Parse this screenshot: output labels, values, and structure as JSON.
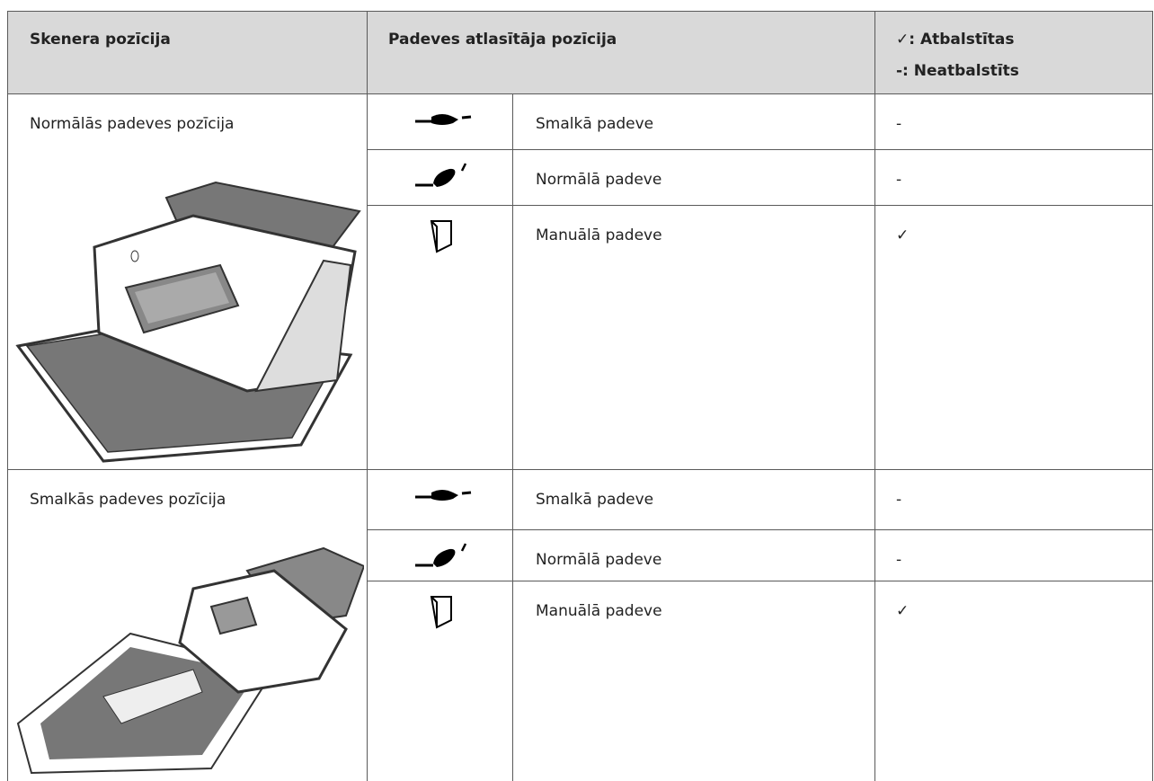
{
  "header": {
    "scanner_position": "Skenera pozīcija",
    "selector_position": "Padeves atlasītāja pozīcija",
    "legend": [
      "✓: Atbalstītas",
      "-: Neatbalstīts"
    ]
  },
  "rows": [
    {
      "position": "Normālās padeves pozīcija",
      "options": [
        {
          "label": "Smalkā padeve",
          "support": "-"
        },
        {
          "label": "Normālā padeve",
          "support": "-"
        },
        {
          "label": "Manuālā padeve",
          "support": "✓"
        }
      ]
    },
    {
      "position": "Smalkās padeves pozīcija",
      "options": [
        {
          "label": "Smalkā padeve",
          "support": "-"
        },
        {
          "label": "Normālā padeve",
          "support": "-"
        },
        {
          "label": "Manuālā padeve",
          "support": "✓"
        }
      ]
    }
  ]
}
